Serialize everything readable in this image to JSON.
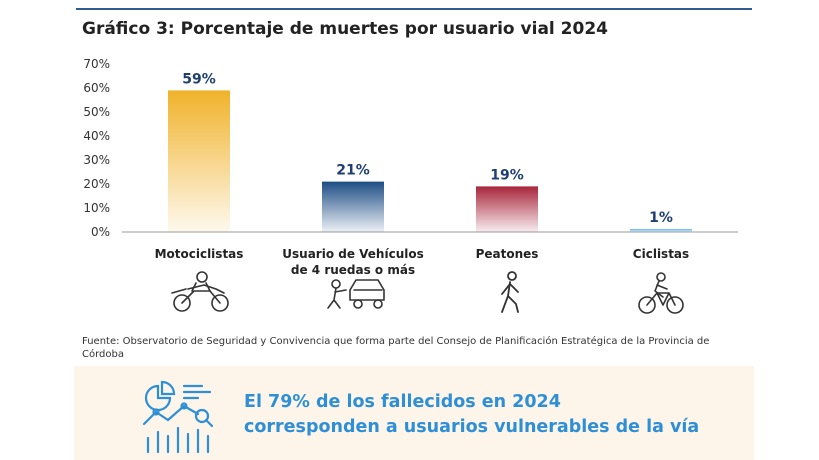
{
  "title": "Gráfico 3: Porcentaje de muertes por usuario vial 2024",
  "source": "Fuente: Observatorio de Seguridad y Convivencia que forma parte del Consejo de Planificación Estratégica de la Provincia de Córdoba",
  "banner": {
    "line1": "El 79% de los fallecidos en 2024",
    "line2": "corresponden a usuarios vulnerables de la vía",
    "icon": "analytics-icon",
    "color": "#2e8fd6"
  },
  "chart_data": {
    "type": "bar",
    "categories": [
      [
        "Motociclistas"
      ],
      [
        "Usuario de Vehículos",
        "de 4 ruedas o más"
      ],
      [
        "Peatones"
      ],
      [
        "Ciclistas"
      ]
    ],
    "values": [
      59,
      21,
      19,
      1
    ],
    "data_labels": [
      "59%",
      "21%",
      "19%",
      "1%"
    ],
    "colors": [
      "#f0b22a",
      "#1d4d85",
      "#a8253b",
      "#5fb4e6"
    ],
    "icons": [
      "motorcycle-icon",
      "car-mechanic-icon",
      "pedestrian-icon",
      "cyclist-icon"
    ],
    "ylim": [
      0,
      70
    ],
    "yticks": [
      "0%",
      "10%",
      "20%",
      "30%",
      "40%",
      "50%",
      "60%",
      "70%"
    ],
    "grid": false,
    "legend": "none"
  }
}
